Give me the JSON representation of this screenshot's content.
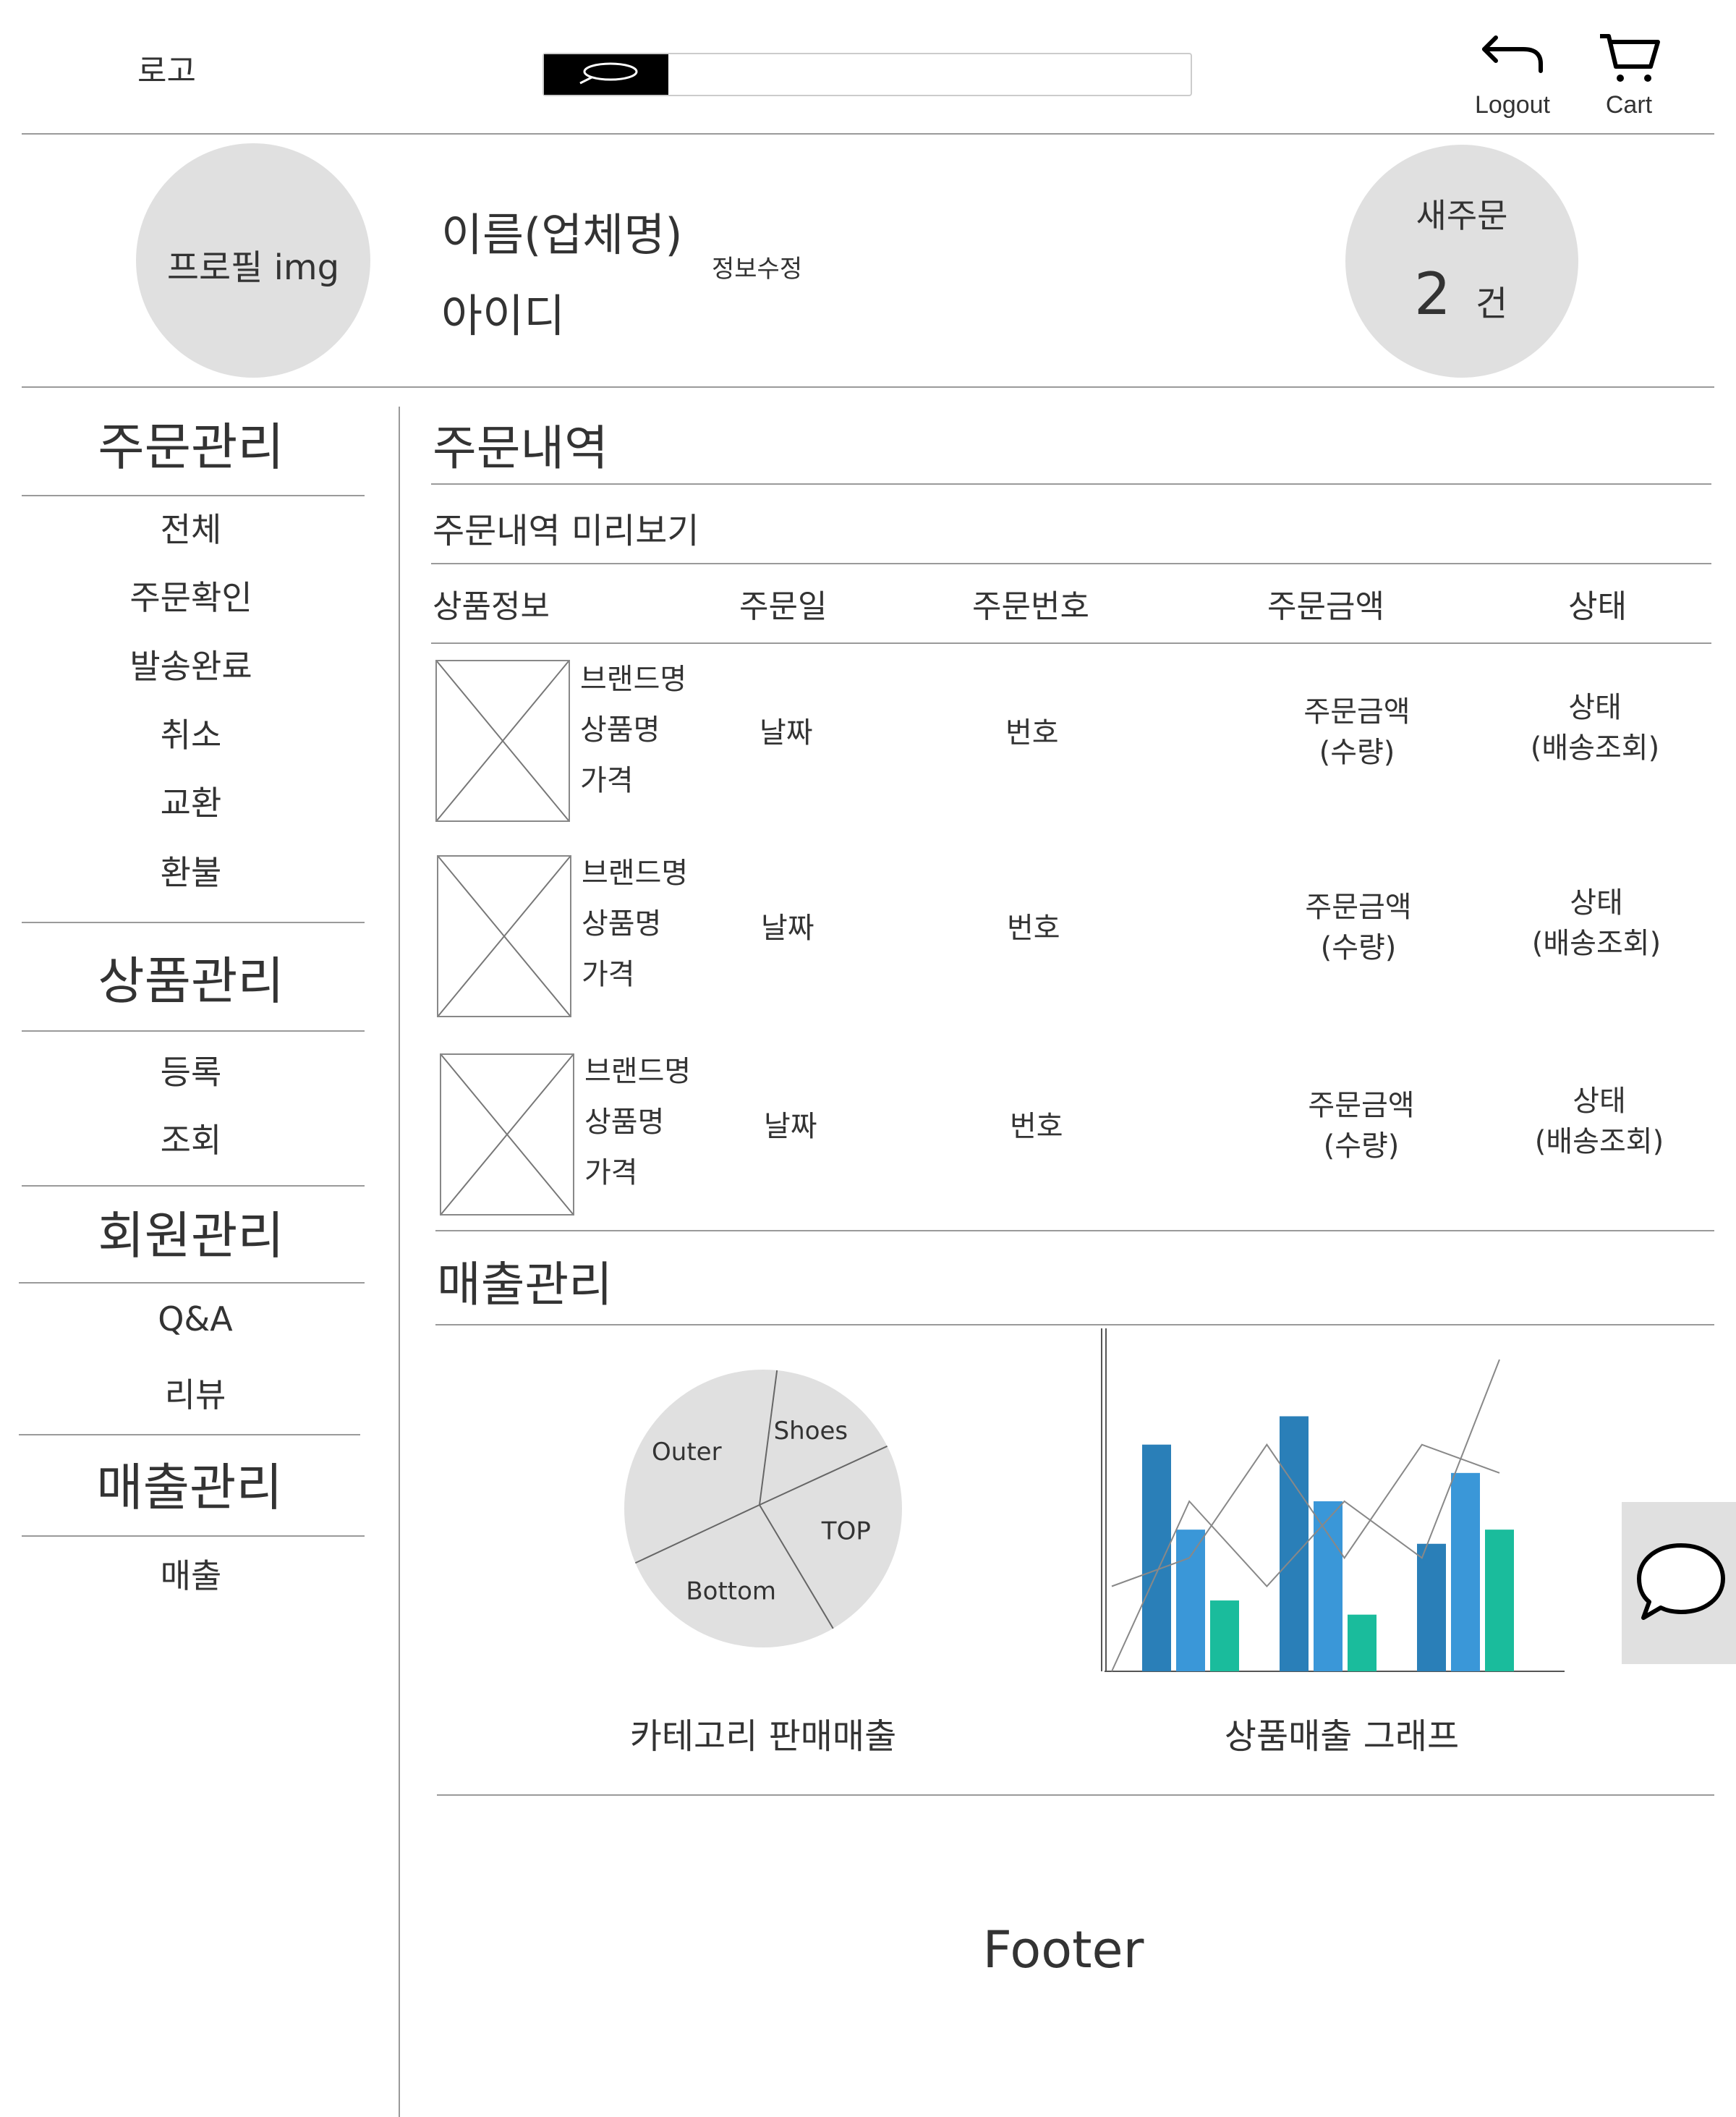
{
  "header": {
    "logo": "로고",
    "search": {
      "placeholder": "",
      "icon": "search-icon"
    },
    "logout_label": "Logout",
    "cart_label": "Cart"
  },
  "profile": {
    "image_label": "프로필 img",
    "name": "이름(업체명)",
    "id_label": "아이디",
    "edit_label": "정보수정",
    "new_order": {
      "title": "새주문",
      "count": "2",
      "unit": "건"
    }
  },
  "sidebar": {
    "sections": [
      {
        "title": "주문관리",
        "items": [
          "전체",
          "주문확인",
          "발송완료",
          "취소",
          "교환",
          "환불"
        ]
      },
      {
        "title": "상품관리",
        "items": [
          "등록",
          "조회"
        ]
      },
      {
        "title": "회원관리",
        "items": [
          "Q&A",
          "리뷰"
        ]
      },
      {
        "title": "매출관리",
        "items": [
          "매출"
        ]
      }
    ]
  },
  "orders": {
    "title": "주문내역",
    "subtitle": "주문내역 미리보기",
    "columns": [
      "상품정보",
      "주문일",
      "주문번호",
      "주문금액",
      "상태"
    ],
    "rows": [
      {
        "brand": "브랜드명",
        "product": "상품명",
        "price": "가격",
        "date": "날짜",
        "number": "번호",
        "amount": "주문금액",
        "qty": "(수량)",
        "status": "상태",
        "tracking": "(배송조회)"
      },
      {
        "brand": "브랜드명",
        "product": "상품명",
        "price": "가격",
        "date": "날짜",
        "number": "번호",
        "amount": "주문금액",
        "qty": "(수량)",
        "status": "상태",
        "tracking": "(배송조회)"
      },
      {
        "brand": "브랜드명",
        "product": "상품명",
        "price": "가격",
        "date": "날짜",
        "number": "번호",
        "amount": "주문금액",
        "qty": "(수량)",
        "status": "상태",
        "tracking": "(배송조회)"
      }
    ]
  },
  "sales": {
    "title": "매출관리",
    "pie_caption": "카테고리 판매매출",
    "bar_caption": "상품매출 그래프"
  },
  "chart_data": [
    {
      "type": "pie",
      "title": "",
      "labels": [
        "Shoes",
        "TOP",
        "Bottom",
        "Outer"
      ],
      "values": [
        0.16,
        0.24,
        0.27,
        0.33
      ]
    },
    {
      "type": "bar",
      "title": "",
      "categories": [
        "",
        "",
        ""
      ],
      "series": [
        {
          "values": [
            8,
            9,
            4.5
          ]
        },
        {
          "values": [
            5,
            6,
            7
          ]
        },
        {
          "values": [
            2.5,
            2,
            5
          ]
        }
      ],
      "lines": [
        {
          "values": [
            3,
            4,
            8,
            4,
            8,
            7
          ]
        },
        {
          "values": [
            0,
            6,
            3,
            6,
            4,
            11
          ]
        }
      ],
      "ylim": [
        0,
        12
      ],
      "colors": [
        "#2a7fb8",
        "#3a97d8",
        "#1abc9c"
      ]
    }
  ],
  "footer": {
    "label": "Footer"
  },
  "chat": {
    "icon": "chat-bubble-icon"
  }
}
